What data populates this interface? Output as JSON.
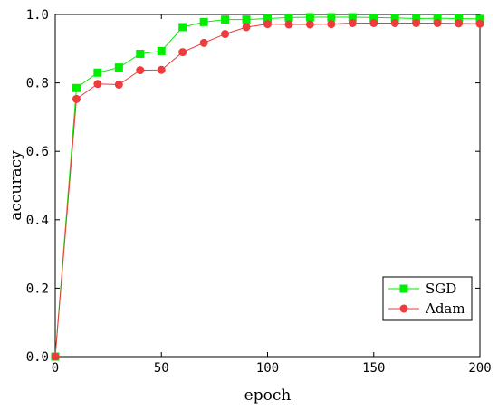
{
  "chart_data": {
    "type": "line",
    "title": "",
    "xlabel": "epoch",
    "ylabel": "accuracy",
    "xlim": [
      0,
      200
    ],
    "ylim": [
      0.0,
      1.0
    ],
    "x_ticks": [
      "0",
      "50",
      "100",
      "150",
      "200"
    ],
    "y_ticks": [
      "0.0",
      "0.2",
      "0.4",
      "0.6",
      "0.8",
      "1.0"
    ],
    "grid": false,
    "legend_position": "bottom-right",
    "x": [
      0,
      10,
      20,
      30,
      40,
      50,
      60,
      70,
      80,
      90,
      100,
      110,
      120,
      130,
      140,
      150,
      160,
      170,
      180,
      190,
      200
    ],
    "series": [
      {
        "name": "SGD",
        "color": "#00ee00",
        "marker": "square",
        "values": [
          0.0,
          0.785,
          0.83,
          0.845,
          0.885,
          0.893,
          0.963,
          0.978,
          0.985,
          0.985,
          0.988,
          0.991,
          0.992,
          0.992,
          0.992,
          0.991,
          0.99,
          0.988,
          0.989,
          0.988,
          0.987
        ]
      },
      {
        "name": "Adam",
        "color": "#ee3b3b",
        "marker": "circle",
        "values": [
          0.0,
          0.753,
          0.797,
          0.795,
          0.837,
          0.838,
          0.89,
          0.917,
          0.943,
          0.963,
          0.972,
          0.971,
          0.971,
          0.972,
          0.975,
          0.975,
          0.975,
          0.975,
          0.975,
          0.974,
          0.973
        ]
      }
    ]
  }
}
